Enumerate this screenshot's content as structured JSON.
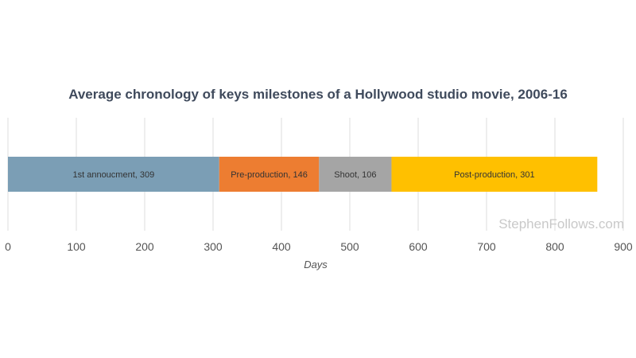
{
  "chart_data": {
    "type": "bar",
    "orientation": "horizontal",
    "stacked": true,
    "title": "Average chronology of keys milestones of a Hollywood studio movie, 2006-16",
    "xlabel": "Days",
    "ylabel": "",
    "xlim": [
      0,
      900
    ],
    "xticks": [
      0,
      100,
      200,
      300,
      400,
      500,
      600,
      700,
      800,
      900
    ],
    "grid": true,
    "series": [
      {
        "label": "1st annoucment, 309",
        "value": 309,
        "color": "#7b9eb5"
      },
      {
        "label": "Pre-production, 146",
        "value": 146,
        "color": "#ed7d31"
      },
      {
        "label": "Shoot, 106",
        "value": 106,
        "color": "#a5a5a5"
      },
      {
        "label": "Post-production, 301",
        "value": 301,
        "color": "#ffc000"
      }
    ]
  },
  "watermark": "StephenFollows.com"
}
